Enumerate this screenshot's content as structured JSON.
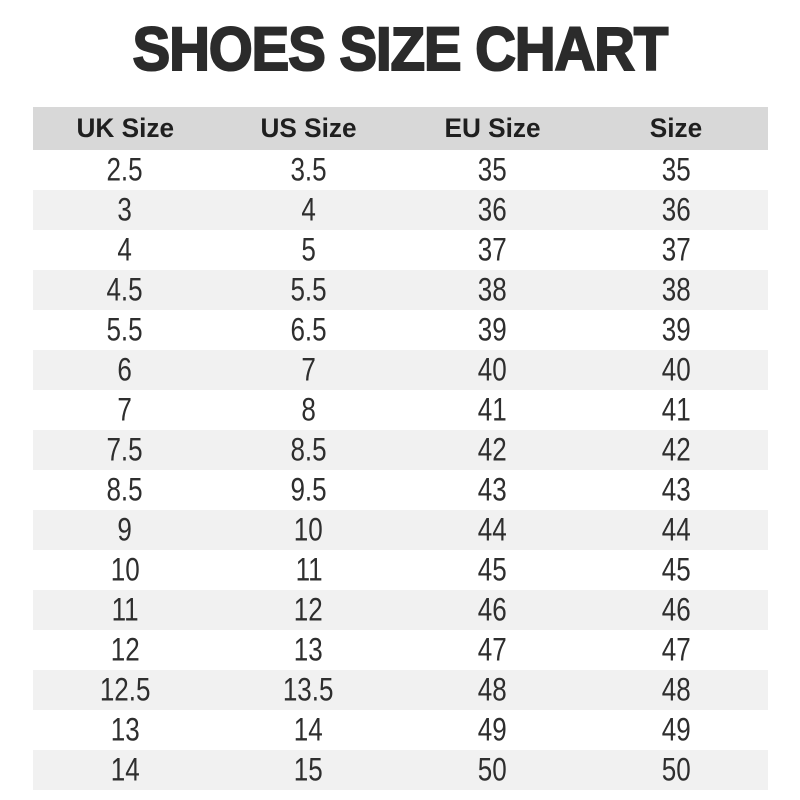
{
  "page": {
    "title": "SHOES SIZE CHART"
  },
  "colors": {
    "header_bg": "#d8d8d8",
    "stripe_bg": "#f1f1f1",
    "title_text": "#2b2b2b",
    "cell_text": "#2e2e2e",
    "background": "#ffffff"
  },
  "chart_data": {
    "type": "table",
    "title": "SHOES SIZE CHART",
    "headers": [
      "UK Size",
      "US Size",
      "EU Size",
      "Size"
    ],
    "rows": [
      [
        "2.5",
        "3.5",
        "35",
        "35"
      ],
      [
        "3",
        "4",
        "36",
        "36"
      ],
      [
        "4",
        "5",
        "37",
        "37"
      ],
      [
        "4.5",
        "5.5",
        "38",
        "38"
      ],
      [
        "5.5",
        "6.5",
        "39",
        "39"
      ],
      [
        "6",
        "7",
        "40",
        "40"
      ],
      [
        "7",
        "8",
        "41",
        "41"
      ],
      [
        "7.5",
        "8.5",
        "42",
        "42"
      ],
      [
        "8.5",
        "9.5",
        "43",
        "43"
      ],
      [
        "9",
        "10",
        "44",
        "44"
      ],
      [
        "10",
        "11",
        "45",
        "45"
      ],
      [
        "11",
        "12",
        "46",
        "46"
      ],
      [
        "12",
        "13",
        "47",
        "47"
      ],
      [
        "12.5",
        "13.5",
        "48",
        "48"
      ],
      [
        "13",
        "14",
        "49",
        "49"
      ],
      [
        "14",
        "15",
        "50",
        "50"
      ]
    ],
    "layout": {
      "striped_rows": "even data rows white, odd data rows light gray",
      "alignment": "center",
      "grid": "off"
    }
  }
}
